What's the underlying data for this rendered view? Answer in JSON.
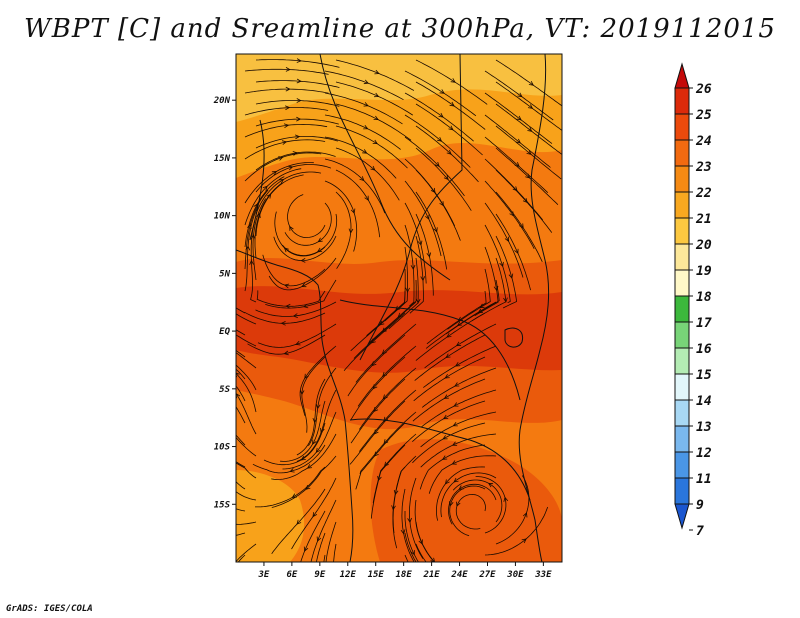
{
  "title": "WBPT [C] and Sreamline at 300hPa, VT: 2019112015",
  "credit": "GrADS: IGES/COLA",
  "map": {
    "lon_range": [
      0,
      35
    ],
    "lat_range": [
      -20,
      24
    ],
    "x_ticks": [
      "3E",
      "6E",
      "9E",
      "12E",
      "15E",
      "18E",
      "21E",
      "24E",
      "27E",
      "30E",
      "33E"
    ],
    "y_ticks": [
      "20N",
      "15N",
      "10N",
      "5N",
      "EQ",
      "5S",
      "10S",
      "15S"
    ],
    "colors": {
      "band_21": "#f8a21a",
      "band_22": "#f47a10",
      "band_23": "#ea5a0c",
      "band_24": "#dc3a0a",
      "band_20": "#f8c040"
    }
  },
  "colorbar": {
    "labels": [
      "26",
      "25",
      "24",
      "23",
      "22",
      "21",
      "20",
      "19",
      "18",
      "17",
      "16",
      "15",
      "14",
      "13",
      "12",
      "11",
      "9",
      "7"
    ],
    "colors": [
      "#c40a0a",
      "#dc2a0a",
      "#ec4a0c",
      "#f26a10",
      "#f58a14",
      "#f8a820",
      "#fcc840",
      "#fde89a",
      "#fff8c8",
      "#3cb83c",
      "#78d478",
      "#b4ecb4",
      "#e2f6fa",
      "#a8d8f4",
      "#7ab8ee",
      "#4a96e6",
      "#2a76dc",
      "#1a56d0"
    ]
  }
}
